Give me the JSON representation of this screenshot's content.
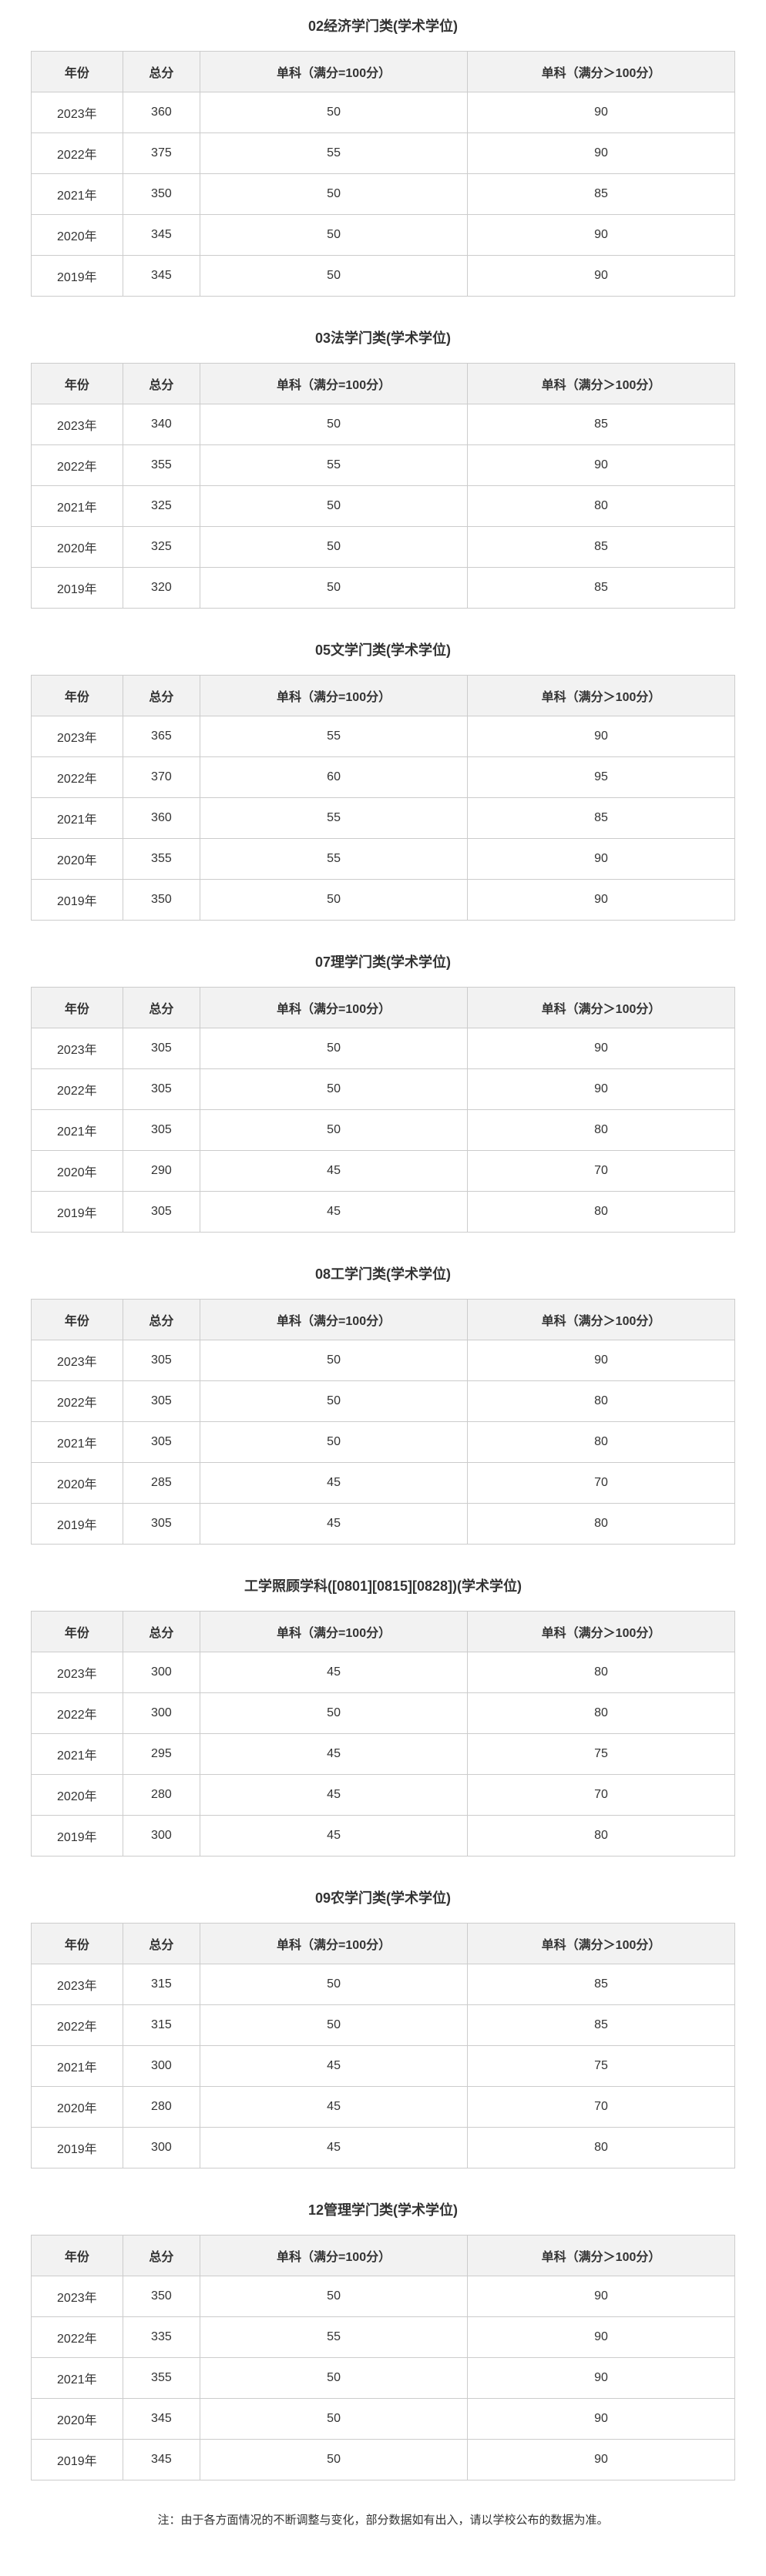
{
  "columns": {
    "year": "年份",
    "total": "总分",
    "sub100": "单科（满分=100分）",
    "subgt100": "单科（满分＞100分）"
  },
  "sections": [
    {
      "title": "02经济学门类(学术学位)",
      "rows": [
        {
          "year": "2023年",
          "total": "360",
          "sub100": "50",
          "subgt100": "90"
        },
        {
          "year": "2022年",
          "total": "375",
          "sub100": "55",
          "subgt100": "90"
        },
        {
          "year": "2021年",
          "total": "350",
          "sub100": "50",
          "subgt100": "85"
        },
        {
          "year": "2020年",
          "total": "345",
          "sub100": "50",
          "subgt100": "90"
        },
        {
          "year": "2019年",
          "total": "345",
          "sub100": "50",
          "subgt100": "90"
        }
      ]
    },
    {
      "title": "03法学门类(学术学位)",
      "rows": [
        {
          "year": "2023年",
          "total": "340",
          "sub100": "50",
          "subgt100": "85"
        },
        {
          "year": "2022年",
          "total": "355",
          "sub100": "55",
          "subgt100": "90"
        },
        {
          "year": "2021年",
          "total": "325",
          "sub100": "50",
          "subgt100": "80"
        },
        {
          "year": "2020年",
          "total": "325",
          "sub100": "50",
          "subgt100": "85"
        },
        {
          "year": "2019年",
          "total": "320",
          "sub100": "50",
          "subgt100": "85"
        }
      ]
    },
    {
      "title": "05文学门类(学术学位)",
      "rows": [
        {
          "year": "2023年",
          "total": "365",
          "sub100": "55",
          "subgt100": "90"
        },
        {
          "year": "2022年",
          "total": "370",
          "sub100": "60",
          "subgt100": "95"
        },
        {
          "year": "2021年",
          "total": "360",
          "sub100": "55",
          "subgt100": "85"
        },
        {
          "year": "2020年",
          "total": "355",
          "sub100": "55",
          "subgt100": "90"
        },
        {
          "year": "2019年",
          "total": "350",
          "sub100": "50",
          "subgt100": "90"
        }
      ]
    },
    {
      "title": "07理学门类(学术学位)",
      "rows": [
        {
          "year": "2023年",
          "total": "305",
          "sub100": "50",
          "subgt100": "90"
        },
        {
          "year": "2022年",
          "total": "305",
          "sub100": "50",
          "subgt100": "90"
        },
        {
          "year": "2021年",
          "total": "305",
          "sub100": "50",
          "subgt100": "80"
        },
        {
          "year": "2020年",
          "total": "290",
          "sub100": "45",
          "subgt100": "70"
        },
        {
          "year": "2019年",
          "total": "305",
          "sub100": "45",
          "subgt100": "80"
        }
      ]
    },
    {
      "title": "08工学门类(学术学位)",
      "rows": [
        {
          "year": "2023年",
          "total": "305",
          "sub100": "50",
          "subgt100": "90"
        },
        {
          "year": "2022年",
          "total": "305",
          "sub100": "50",
          "subgt100": "80"
        },
        {
          "year": "2021年",
          "total": "305",
          "sub100": "50",
          "subgt100": "80"
        },
        {
          "year": "2020年",
          "total": "285",
          "sub100": "45",
          "subgt100": "70"
        },
        {
          "year": "2019年",
          "total": "305",
          "sub100": "45",
          "subgt100": "80"
        }
      ]
    },
    {
      "title": "工学照顾学科([0801][0815][0828])(学术学位)",
      "rows": [
        {
          "year": "2023年",
          "total": "300",
          "sub100": "45",
          "subgt100": "80"
        },
        {
          "year": "2022年",
          "total": "300",
          "sub100": "50",
          "subgt100": "80"
        },
        {
          "year": "2021年",
          "total": "295",
          "sub100": "45",
          "subgt100": "75"
        },
        {
          "year": "2020年",
          "total": "280",
          "sub100": "45",
          "subgt100": "70"
        },
        {
          "year": "2019年",
          "total": "300",
          "sub100": "45",
          "subgt100": "80"
        }
      ]
    },
    {
      "title": "09农学门类(学术学位)",
      "rows": [
        {
          "year": "2023年",
          "total": "315",
          "sub100": "50",
          "subgt100": "85"
        },
        {
          "year": "2022年",
          "total": "315",
          "sub100": "50",
          "subgt100": "85"
        },
        {
          "year": "2021年",
          "total": "300",
          "sub100": "45",
          "subgt100": "75"
        },
        {
          "year": "2020年",
          "total": "280",
          "sub100": "45",
          "subgt100": "70"
        },
        {
          "year": "2019年",
          "total": "300",
          "sub100": "45",
          "subgt100": "80"
        }
      ]
    },
    {
      "title": "12管理学门类(学术学位)",
      "rows": [
        {
          "year": "2023年",
          "total": "350",
          "sub100": "50",
          "subgt100": "90"
        },
        {
          "year": "2022年",
          "total": "335",
          "sub100": "55",
          "subgt100": "90"
        },
        {
          "year": "2021年",
          "total": "355",
          "sub100": "50",
          "subgt100": "90"
        },
        {
          "year": "2020年",
          "total": "345",
          "sub100": "50",
          "subgt100": "90"
        },
        {
          "year": "2019年",
          "total": "345",
          "sub100": "50",
          "subgt100": "90"
        }
      ]
    }
  ],
  "footnote": "注：由于各方面情况的不断调整与变化，部分数据如有出入，请以学校公布的数据为准。"
}
